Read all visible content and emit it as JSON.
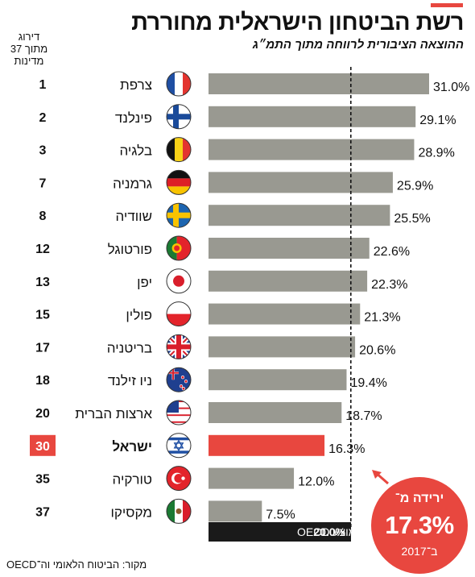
{
  "title": "רשת הביטחון הישראלית מחוררת",
  "subtitle": "ההוצאה הציבורית לרווחה מתוך התמ״ג",
  "rank_header": [
    "דירוג",
    "מתוך 37",
    "מדינות"
  ],
  "source": "מקור: הביטוח הלאומי וה־OECD",
  "badge": {
    "line1": "ירידה מ־",
    "value": "17.3%",
    "line2": "ב־2017"
  },
  "colors": {
    "bar": "#999991",
    "highlight": "#e8473f",
    "oecd_box": "#1a1a1a"
  },
  "chart_data": {
    "type": "bar",
    "orientation": "horizontal",
    "unit": "%",
    "xlim": [
      0,
      31
    ],
    "reference_line": {
      "label": "ממוצע OECD",
      "value": 20.0,
      "value_label": "20.0%"
    },
    "categories": [
      "צרפת",
      "פינלנד",
      "בלגיה",
      "גרמניה",
      "שוודיה",
      "פורטוגל",
      "יפן",
      "פולין",
      "בריטניה",
      "ניו זילנד",
      "ארצות הברית",
      "ישראל",
      "טורקיה",
      "מקסיקו"
    ],
    "ranks": [
      "1",
      "2",
      "3",
      "7",
      "8",
      "12",
      "13",
      "15",
      "17",
      "18",
      "20",
      "30",
      "35",
      "37"
    ],
    "values": [
      31.0,
      29.1,
      28.9,
      25.9,
      25.5,
      22.6,
      22.3,
      21.3,
      20.6,
      19.4,
      18.7,
      16.3,
      12.0,
      7.5
    ],
    "value_labels": [
      "31.0%",
      "29.1%",
      "28.9%",
      "25.9%",
      "25.5%",
      "22.6%",
      "22.3%",
      "21.3%",
      "20.6%",
      "19.4%",
      "18.7%",
      "16.3%",
      "12.0%",
      "7.5%"
    ],
    "flags": [
      "france-flag-icon",
      "finland-flag-icon",
      "belgium-flag-icon",
      "germany-flag-icon",
      "sweden-flag-icon",
      "portugal-flag-icon",
      "japan-flag-icon",
      "poland-flag-icon",
      "uk-flag-icon",
      "new-zealand-flag-icon",
      "usa-flag-icon",
      "israel-flag-icon",
      "turkey-flag-icon",
      "mexico-flag-icon"
    ],
    "highlight": "ישראל"
  }
}
